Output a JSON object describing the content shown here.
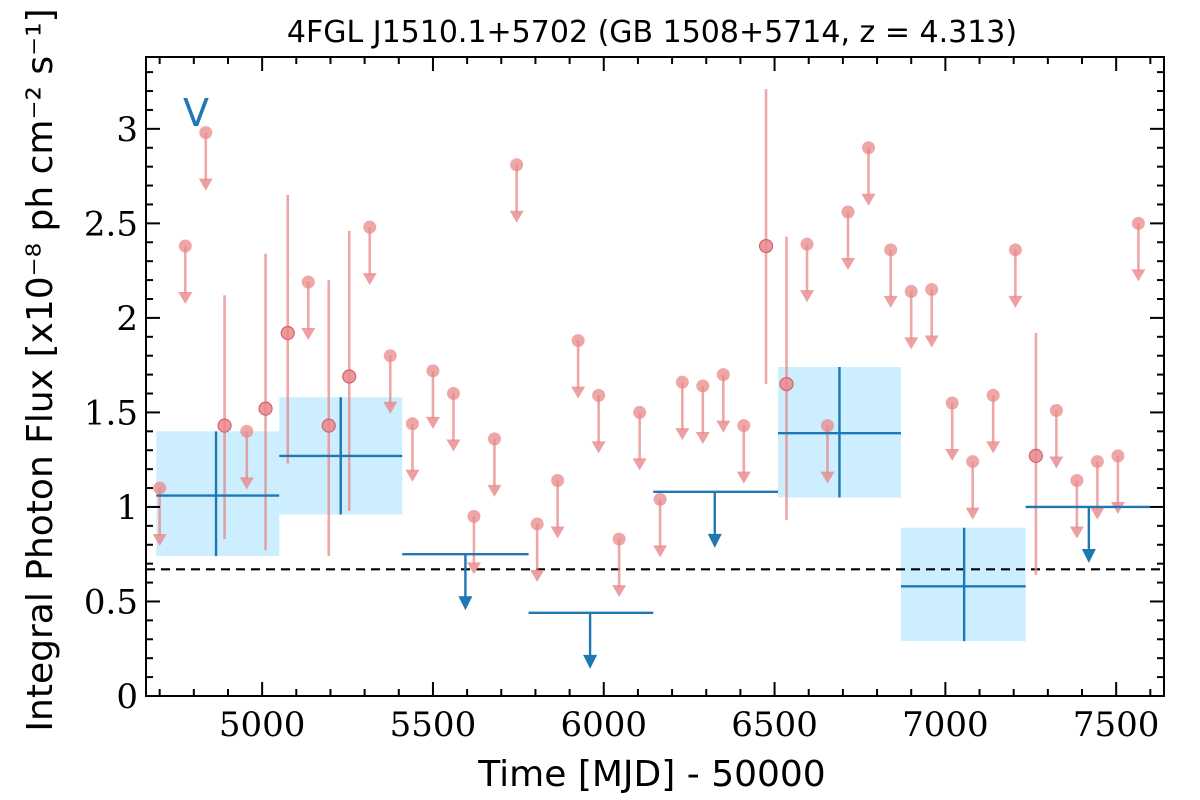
{
  "chart_data": {
    "type": "scatter",
    "title": "4FGL J1510.1+5702 (GB 1508+5714, z = 4.313)",
    "xlabel": "Time [MJD] - 50000",
    "ylabel": "Integral Photon Flux [x10⁻⁸ ph cm⁻² s⁻¹]",
    "panel_label": "V",
    "xlim": [
      4660,
      7640
    ],
    "ylim": [
      0,
      3.38
    ],
    "x_ticks": [
      5000,
      5500,
      6000,
      6500,
      7000,
      7500
    ],
    "y_ticks": [
      0,
      0.5,
      1,
      1.5,
      2,
      2.5,
      3
    ],
    "y_tick_labels": [
      "0",
      "0.5",
      "1",
      "1.5",
      "2",
      "2.5",
      "3"
    ],
    "reference_line": {
      "y": 0.67,
      "style": "dashed",
      "color": "#000000"
    },
    "colors": {
      "short_bins": "#e8888a",
      "long_bins": "#1f77b4",
      "long_bins_fill": "#cceeff"
    },
    "series": [
      {
        "marker": "circle",
        "detections": [
          {
            "x": 4890,
            "y": 1.43,
            "ylo": 0.83,
            "yhi": 2.12
          },
          {
            "x": 5010,
            "y": 1.52,
            "ylo": 0.77,
            "yhi": 2.34
          },
          {
            "x": 5075,
            "y": 1.92,
            "ylo": 1.23,
            "yhi": 2.65
          },
          {
            "x": 5195,
            "y": 1.43,
            "ylo": 0.74,
            "yhi": 2.2
          },
          {
            "x": 5255,
            "y": 1.69,
            "ylo": 0.98,
            "yhi": 2.46
          },
          {
            "x": 6475,
            "y": 2.38,
            "ylo": 1.65,
            "yhi": 3.21
          },
          {
            "x": 6535,
            "y": 1.65,
            "ylo": 0.93,
            "yhi": 2.43
          },
          {
            "x": 7265,
            "y": 1.27,
            "ylo": 0.64,
            "yhi": 1.92
          }
        ],
        "upper_limits": [
          {
            "x": 4700,
            "y": 1.1
          },
          {
            "x": 4775,
            "y": 2.38
          },
          {
            "x": 4835,
            "y": 2.98
          },
          {
            "x": 4955,
            "y": 1.4
          },
          {
            "x": 5135,
            "y": 2.19
          },
          {
            "x": 5315,
            "y": 2.48
          },
          {
            "x": 5375,
            "y": 1.8
          },
          {
            "x": 5440,
            "y": 1.44
          },
          {
            "x": 5500,
            "y": 1.72
          },
          {
            "x": 5560,
            "y": 1.6
          },
          {
            "x": 5620,
            "y": 0.95
          },
          {
            "x": 5680,
            "y": 1.36
          },
          {
            "x": 5745,
            "y": 2.81
          },
          {
            "x": 5805,
            "y": 0.91
          },
          {
            "x": 5865,
            "y": 1.14
          },
          {
            "x": 5925,
            "y": 1.88
          },
          {
            "x": 5985,
            "y": 1.59
          },
          {
            "x": 6045,
            "y": 0.83
          },
          {
            "x": 6105,
            "y": 1.5
          },
          {
            "x": 6165,
            "y": 1.04
          },
          {
            "x": 6230,
            "y": 1.66
          },
          {
            "x": 6290,
            "y": 1.64
          },
          {
            "x": 6350,
            "y": 1.7
          },
          {
            "x": 6410,
            "y": 1.43
          },
          {
            "x": 6595,
            "y": 2.39
          },
          {
            "x": 6655,
            "y": 1.43
          },
          {
            "x": 6715,
            "y": 2.56
          },
          {
            "x": 6775,
            "y": 2.9
          },
          {
            "x": 6840,
            "y": 2.36
          },
          {
            "x": 6900,
            "y": 2.14
          },
          {
            "x": 6960,
            "y": 2.15
          },
          {
            "x": 7020,
            "y": 1.55
          },
          {
            "x": 7080,
            "y": 1.24
          },
          {
            "x": 7140,
            "y": 1.59
          },
          {
            "x": 7205,
            "y": 2.36
          },
          {
            "x": 7325,
            "y": 1.51
          },
          {
            "x": 7385,
            "y": 1.14
          },
          {
            "x": 7445,
            "y": 1.24
          },
          {
            "x": 7505,
            "y": 1.27
          },
          {
            "x": 7565,
            "y": 2.5
          }
        ]
      },
      {
        "marker": "bin",
        "detections": [
          {
            "x": 4865,
            "xlo": 4690,
            "xhi": 5050,
            "y": 1.06,
            "ylo": 0.74,
            "yhi": 1.4
          },
          {
            "x": 5230,
            "xlo": 5050,
            "xhi": 5410,
            "y": 1.27,
            "ylo": 0.96,
            "yhi": 1.58
          },
          {
            "x": 6690,
            "xlo": 6510,
            "xhi": 6870,
            "y": 1.39,
            "ylo": 1.05,
            "yhi": 1.74
          },
          {
            "x": 7055,
            "xlo": 6870,
            "xhi": 7235,
            "y": 0.58,
            "ylo": 0.29,
            "yhi": 0.89
          }
        ],
        "upper_limits": [
          {
            "x": 5595,
            "xlo": 5410,
            "xhi": 5780,
            "y": 0.75
          },
          {
            "x": 5960,
            "xlo": 5780,
            "xhi": 6145,
            "y": 0.44
          },
          {
            "x": 6325,
            "xlo": 6145,
            "xhi": 6510,
            "y": 1.08
          },
          {
            "x": 7420,
            "xlo": 7235,
            "xhi": 7600,
            "y": 1.0
          }
        ]
      }
    ]
  }
}
